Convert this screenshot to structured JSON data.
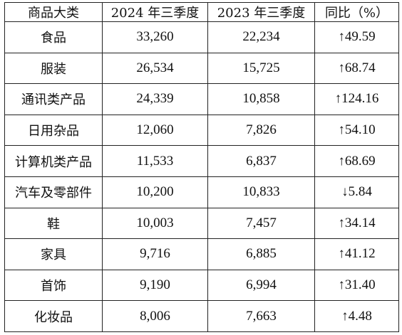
{
  "table": {
    "headers": [
      "商品大类",
      "2024 年三季度",
      "2023 年三季度",
      "同比（%）"
    ],
    "rows": [
      {
        "category": "食品",
        "q3_2024": "33,260",
        "q3_2023": "22,234",
        "yoy": "↑49.59"
      },
      {
        "category": "服装",
        "q3_2024": "26,534",
        "q3_2023": "15,725",
        "yoy": "↑68.74"
      },
      {
        "category": "通讯类产品",
        "q3_2024": "24,339",
        "q3_2023": "10,858",
        "yoy": "↑124.16"
      },
      {
        "category": "日用杂品",
        "q3_2024": "12,060",
        "q3_2023": "7,826",
        "yoy": "↑54.10"
      },
      {
        "category": "计算机类产品",
        "q3_2024": "11,533",
        "q3_2023": "6,837",
        "yoy": "↑68.69"
      },
      {
        "category": "汽车及零部件",
        "q3_2024": "10,200",
        "q3_2023": "10,833",
        "yoy": "↓5.84"
      },
      {
        "category": "鞋",
        "q3_2024": "10,003",
        "q3_2023": "7,457",
        "yoy": "↑34.14"
      },
      {
        "category": "家具",
        "q3_2024": "9,716",
        "q3_2023": "6,885",
        "yoy": "↑41.12"
      },
      {
        "category": "首饰",
        "q3_2024": "9,190",
        "q3_2023": "6,994",
        "yoy": "↑31.40"
      },
      {
        "category": "化妆品",
        "q3_2024": "8,006",
        "q3_2023": "7,663",
        "yoy": "↑4.48"
      }
    ]
  }
}
